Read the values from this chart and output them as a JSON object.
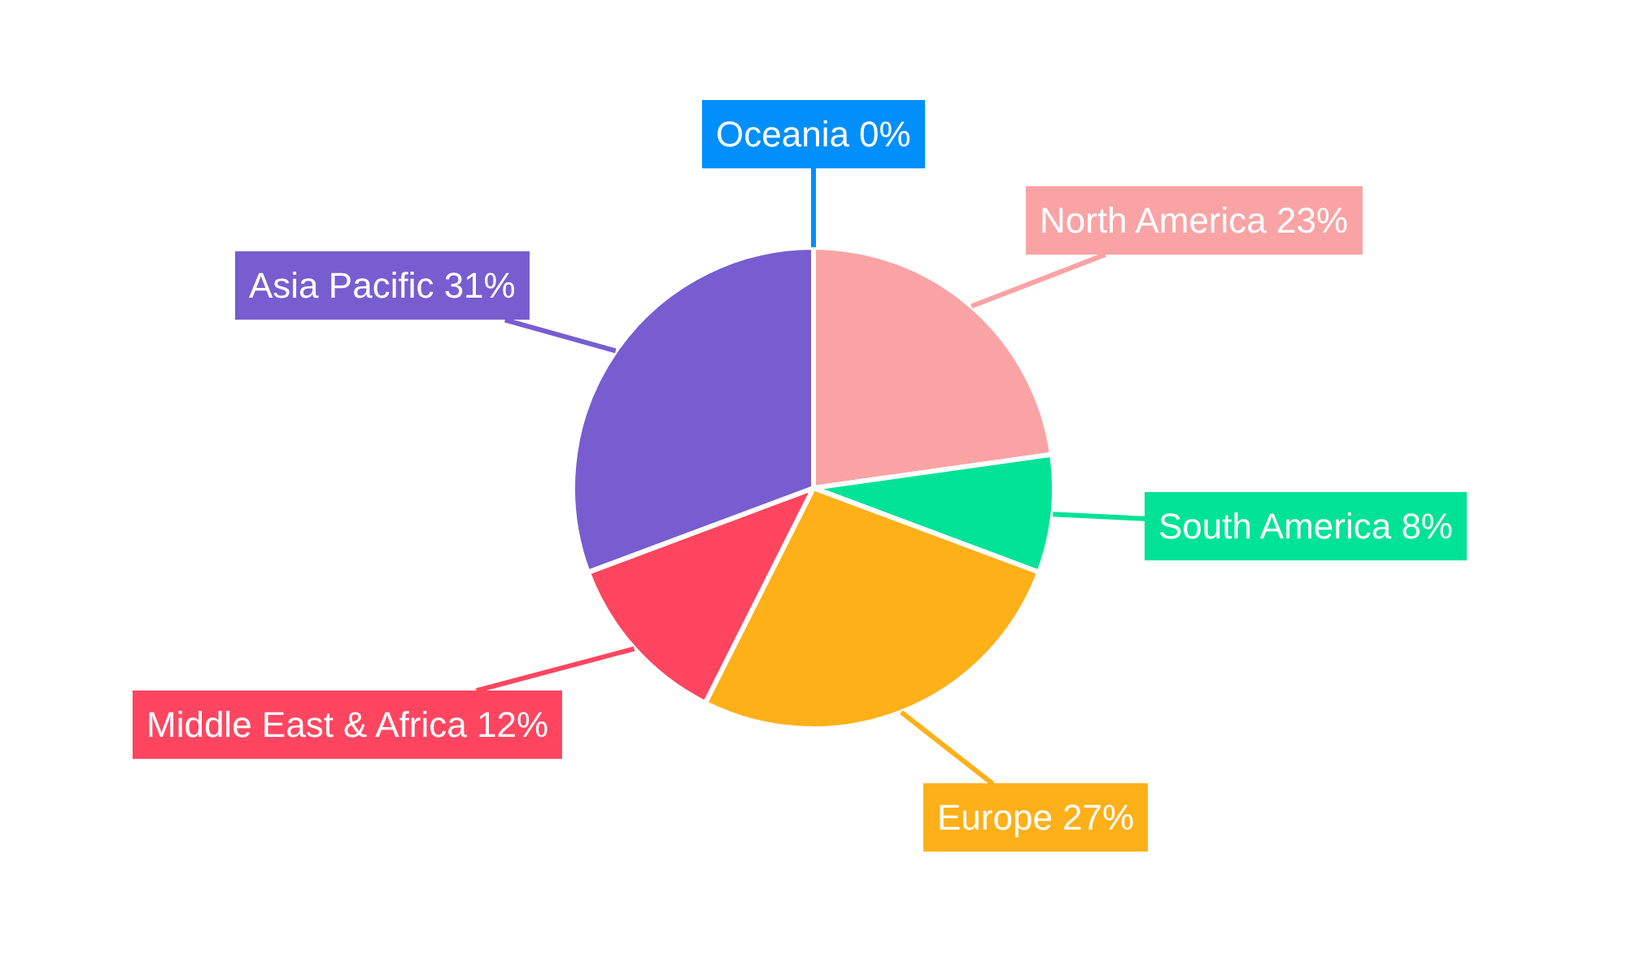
{
  "chart_data": {
    "type": "pie",
    "categories": [
      "North America",
      "South America",
      "Europe",
      "Middle East & Africa",
      "Asia Pacific",
      "Oceania"
    ],
    "values": [
      23,
      8,
      27,
      12,
      31,
      0
    ],
    "colors": [
      "#f9a3a4",
      "#00e396",
      "#feb019",
      "#ff4560",
      "#775dd0",
      "#008ffb"
    ],
    "value_labels": [
      "23%",
      "8%",
      "27%",
      "12%",
      "31%",
      "0%"
    ],
    "legend": false
  }
}
